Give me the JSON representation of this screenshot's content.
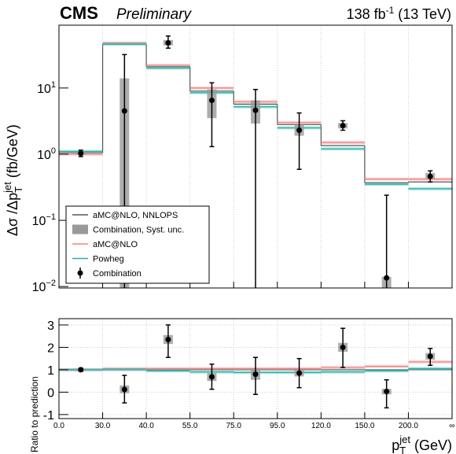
{
  "chart_data": {
    "type": "step",
    "experiment": "CMS",
    "status": "Preliminary",
    "lumi": "138 fb",
    "lumi_sup": "-1",
    "lumi_tail": " (13 TeV)",
    "ylabel": {
      "main": "Δσ /Δp",
      "sub": "T",
      "sup": "jet",
      "unit": " (fb/GeV)"
    },
    "xlabel": {
      "main": "p",
      "sub": "T",
      "sup": "jet",
      "unit": " (GeV)"
    },
    "ratio_ylabel": "Ratio to prediction",
    "bin_edges": [
      "0.0",
      "30.0",
      "40.0",
      "55.0",
      "75.0",
      "95.0",
      "120.0",
      "150.0",
      "200.0",
      "∞"
    ],
    "log_y": true,
    "grid": true,
    "ylim": [
      0.0095,
      89
    ],
    "yticks": [
      {
        "value": 0.01,
        "label": "10",
        "exp": "−2"
      },
      {
        "value": 0.1,
        "label": "10",
        "exp": "−1"
      },
      {
        "value": 1,
        "label": "10",
        "exp": "0"
      },
      {
        "value": 10,
        "label": "10",
        "exp": "1"
      }
    ],
    "series": [
      {
        "name": "aMC@NLO, NNLOPS",
        "color": "#555555",
        "values": [
          1.05,
          46,
          21,
          9,
          5.7,
          2.8,
          1.35,
          0.37,
          0.38
        ],
        "ratio": [
          1.0,
          1.0,
          1.0,
          1.0,
          1.0,
          1.0,
          1.0,
          1.0,
          1.0
        ]
      },
      {
        "name": "aMC@NLO",
        "color": "#f08080",
        "values": [
          1.0,
          48,
          22,
          10,
          6.2,
          3.0,
          1.5,
          0.42,
          0.42
        ],
        "ratio": [
          1.0,
          1.05,
          1.05,
          1.05,
          1.05,
          1.05,
          1.1,
          1.15,
          1.35
        ]
      },
      {
        "name": "Powheg",
        "color": "#20b2aa",
        "values": [
          1.1,
          46,
          20,
          8.5,
          5.2,
          2.5,
          1.2,
          0.35,
          0.3
        ],
        "ratio": [
          1.0,
          1.0,
          0.95,
          0.9,
          0.88,
          0.88,
          0.9,
          0.95,
          1.05
        ]
      }
    ],
    "data": {
      "name": "Combination",
      "syst_name": "Combination, Syst. unc.",
      "values": [
        1.03,
        4.5,
        48,
        6.5,
        4.6,
        2.3,
        2.7,
        0.0135,
        0.46
      ],
      "lower": [
        0.92,
        0.001,
        40,
        1.3,
        0.001,
        0.59,
        2.3,
        0.001,
        0.38
      ],
      "upper": [
        1.15,
        32,
        61,
        12,
        9.5,
        4.2,
        3.2,
        0.24,
        0.56
      ],
      "syst_lower": [
        0.98,
        0.001,
        44,
        3.5,
        2.9,
        1.9,
        2.45,
        0.001,
        0.42
      ],
      "syst_upper": [
        1.08,
        14,
        53,
        9.5,
        6.5,
        2.8,
        2.95,
        0.014,
        0.52
      ]
    },
    "ratio_ylim": [
      -1.18,
      3.28
    ],
    "ratio_yticks": [
      -1,
      0,
      1,
      2,
      3
    ],
    "ratio_data": {
      "values": [
        1.0,
        0.12,
        2.35,
        0.68,
        0.8,
        0.85,
        2.0,
        0.03,
        1.6
      ],
      "lower": [
        0.93,
        -0.48,
        1.55,
        0.13,
        -0.1,
        0.2,
        1.1,
        -0.7,
        1.2
      ],
      "upper": [
        1.07,
        0.75,
        3.0,
        1.25,
        1.55,
        1.5,
        2.85,
        0.55,
        1.95
      ],
      "syst_lower": [
        0.95,
        -0.05,
        2.15,
        0.5,
        0.55,
        0.7,
        1.8,
        -0.1,
        1.45
      ],
      "syst_upper": [
        1.05,
        0.3,
        2.55,
        0.85,
        1.05,
        1.0,
        2.2,
        0.15,
        1.75
      ]
    }
  }
}
